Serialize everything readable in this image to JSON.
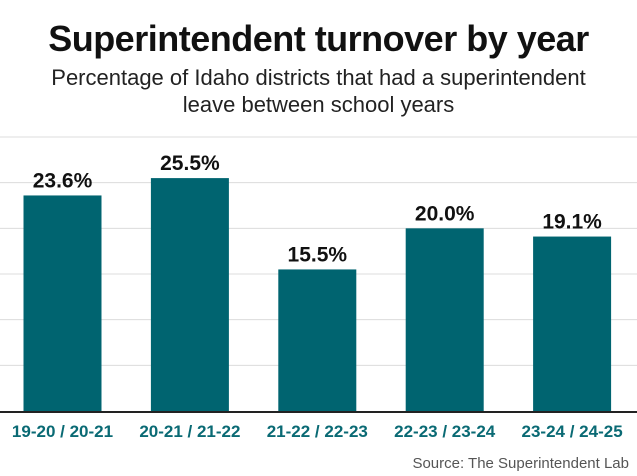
{
  "chart_data": {
    "type": "bar",
    "title": "Superintendent turnover by year",
    "subtitle": "Percentage of Idaho districts that had a superintendent leave between school years",
    "categories": [
      "19-20 / 20-21",
      "20-21 / 21-22",
      "21-22 / 22-23",
      "22-23 / 23-24",
      "23-24 / 24-25"
    ],
    "values": [
      23.6,
      25.5,
      15.5,
      20.0,
      19.1
    ],
    "value_labels": [
      "23.6%",
      "25.5%",
      "15.5%",
      "20.0%",
      "19.1%"
    ],
    "xlabel": "",
    "ylabel": "",
    "ylim": [
      0,
      30
    ],
    "grid": true,
    "bar_color": "#006470",
    "tick_label_color": "#0a6a74"
  },
  "source": "Source: The Superintendent Lab"
}
